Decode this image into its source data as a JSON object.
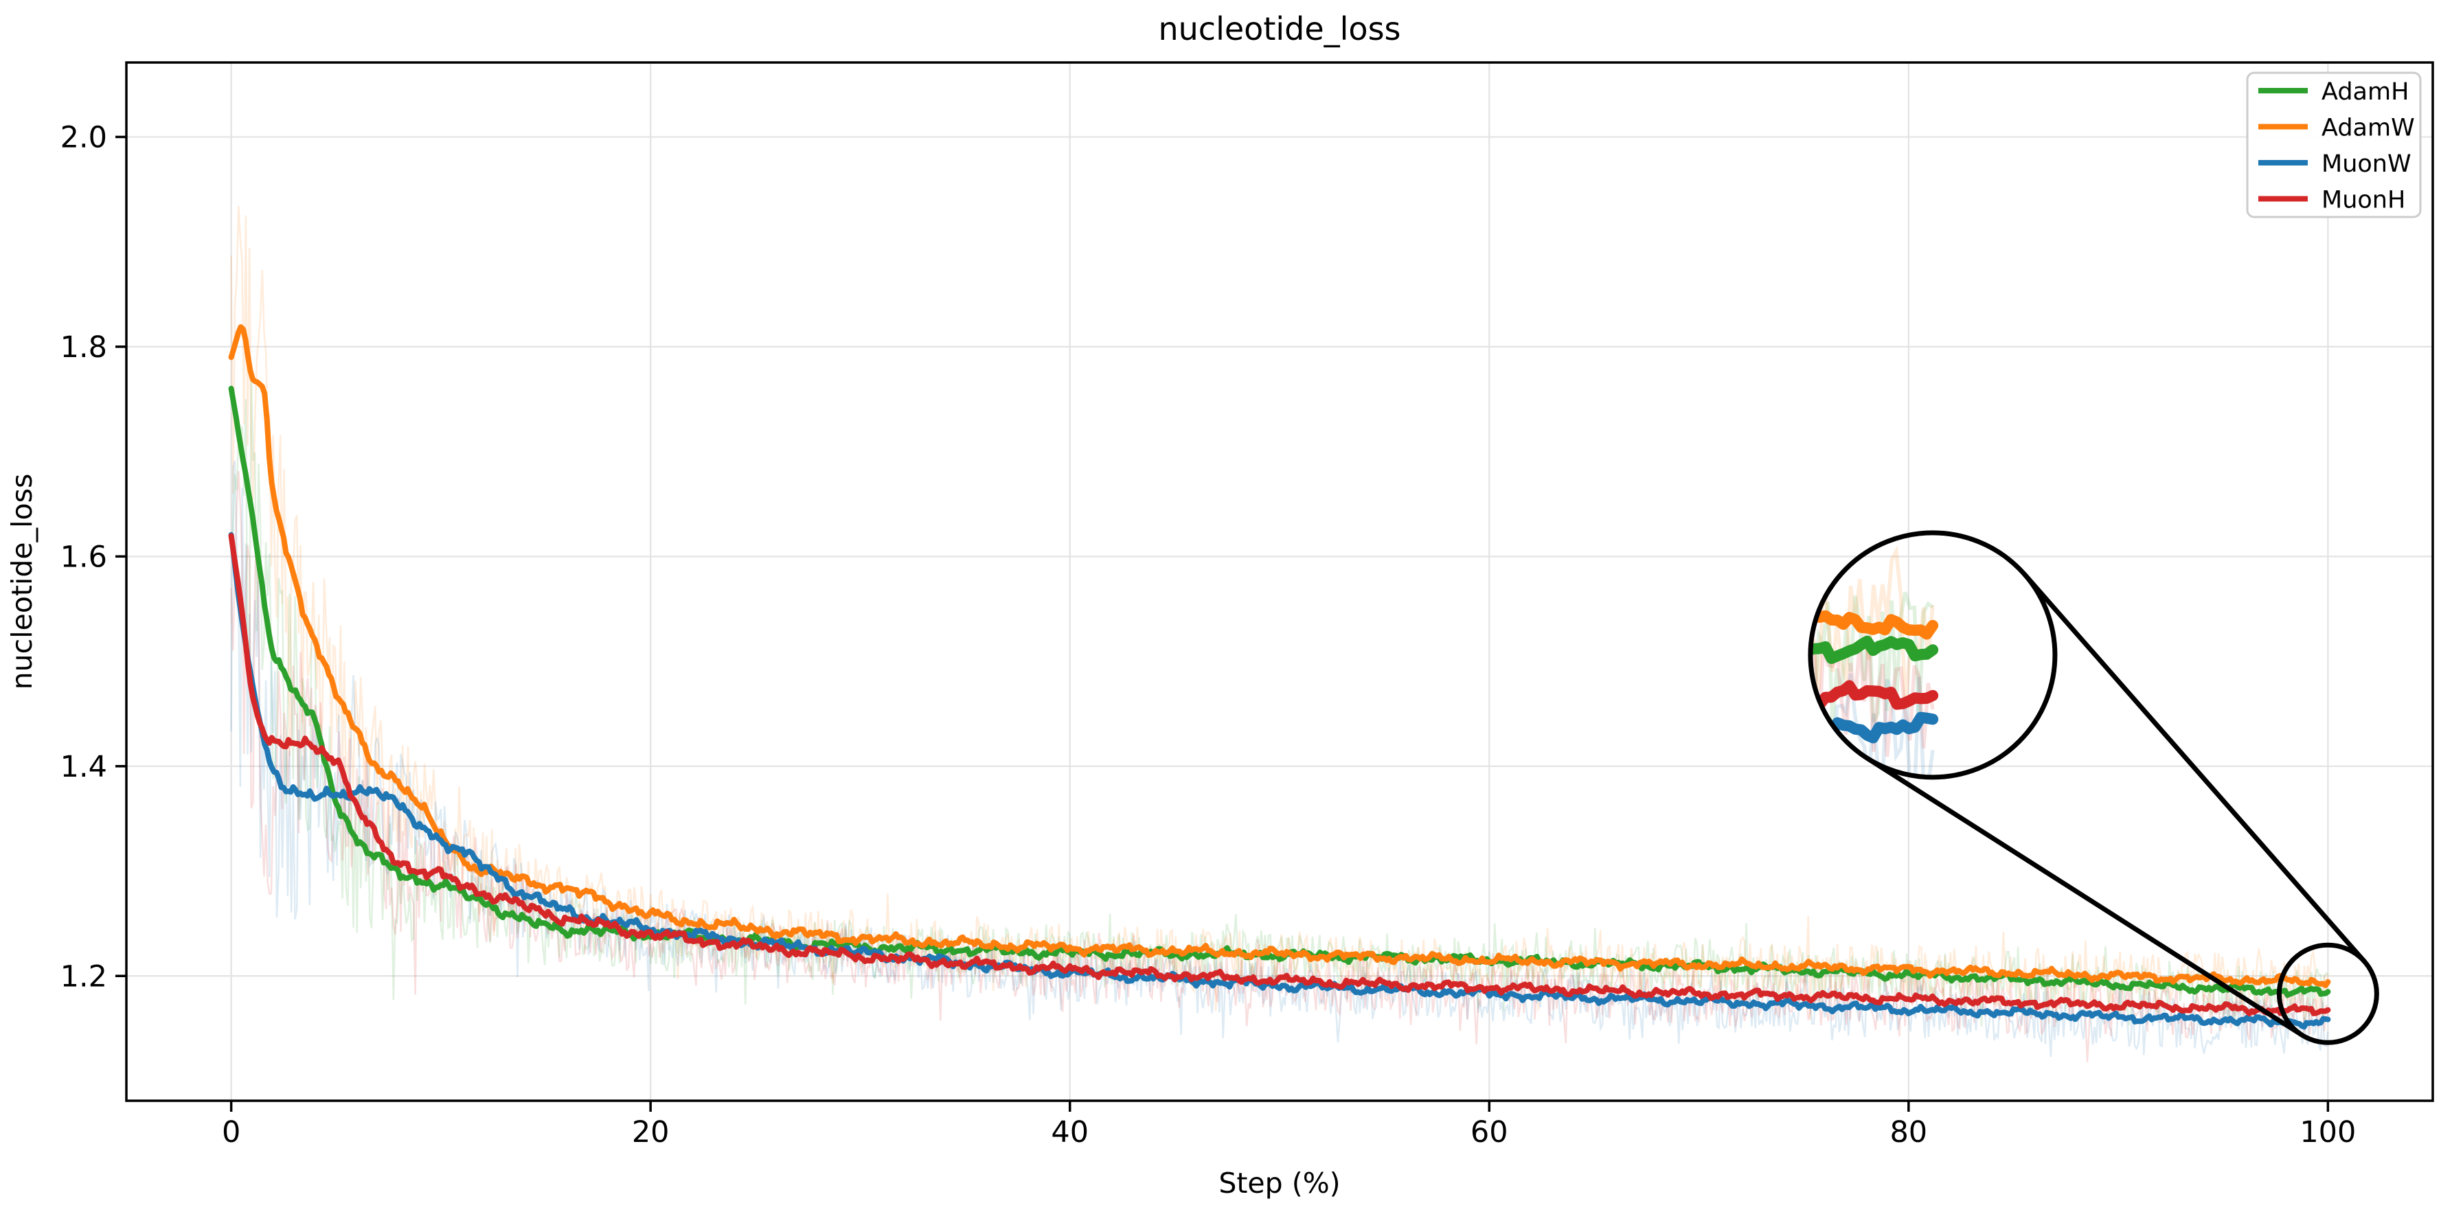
{
  "figure": {
    "title": "nucleotide_loss"
  },
  "chart_data": {
    "type": "line",
    "title": "nucleotide_loss",
    "xlabel": "Step (%)",
    "ylabel": "nucleotide_loss",
    "xlim": [
      -5,
      105
    ],
    "ylim": [
      1.081,
      2.071
    ],
    "xticks": [
      0,
      20,
      40,
      60,
      80,
      100
    ],
    "yticks": [
      1.2,
      1.4,
      1.6,
      1.8,
      2.0
    ],
    "grid": true,
    "grid_color": "#e3e3e3",
    "legend_position": "upper right",
    "raw_trace_alpha": 0.15,
    "x": [
      0,
      0.5,
      1,
      1.5,
      2,
      3,
      4,
      5,
      6,
      7,
      8,
      9,
      10,
      12,
      14,
      16,
      18,
      20,
      25,
      30,
      35,
      40,
      45,
      50,
      55,
      60,
      65,
      70,
      75,
      80,
      85,
      90,
      95,
      100
    ],
    "series": [
      {
        "name": "AdamH",
        "color": "#2ca02c",
        "values": [
          1.76,
          1.7,
          1.64,
          1.57,
          1.51,
          1.47,
          1.44,
          1.37,
          1.33,
          1.31,
          1.3,
          1.292,
          1.285,
          1.272,
          1.252,
          1.245,
          1.242,
          1.24,
          1.233,
          1.228,
          1.225,
          1.222,
          1.221,
          1.22,
          1.218,
          1.215,
          1.212,
          1.209,
          1.205,
          1.201,
          1.197,
          1.192,
          1.188,
          1.184
        ]
      },
      {
        "name": "AdamW",
        "color": "#ff7f0e",
        "values": [
          1.79,
          1.82,
          1.77,
          1.76,
          1.66,
          1.58,
          1.52,
          1.47,
          1.43,
          1.4,
          1.385,
          1.36,
          1.335,
          1.3,
          1.292,
          1.282,
          1.272,
          1.258,
          1.245,
          1.236,
          1.231,
          1.227,
          1.224,
          1.221,
          1.218,
          1.215,
          1.213,
          1.211,
          1.209,
          1.206,
          1.203,
          1.2,
          1.197,
          1.194
        ]
      },
      {
        "name": "MuonW",
        "color": "#1f77b4",
        "values": [
          1.62,
          1.54,
          1.48,
          1.43,
          1.4,
          1.375,
          1.37,
          1.372,
          1.378,
          1.375,
          1.36,
          1.345,
          1.33,
          1.305,
          1.278,
          1.262,
          1.252,
          1.245,
          1.232,
          1.222,
          1.212,
          1.203,
          1.197,
          1.191,
          1.187,
          1.183,
          1.179,
          1.176,
          1.172,
          1.168,
          1.165,
          1.161,
          1.158,
          1.155
        ]
      },
      {
        "name": "MuonH",
        "color": "#d62728",
        "values": [
          1.62,
          1.55,
          1.47,
          1.435,
          1.42,
          1.42,
          1.42,
          1.405,
          1.36,
          1.33,
          1.31,
          1.3,
          1.295,
          1.28,
          1.266,
          1.255,
          1.247,
          1.24,
          1.228,
          1.219,
          1.212,
          1.206,
          1.201,
          1.196,
          1.192,
          1.189,
          1.186,
          1.183,
          1.181,
          1.178,
          1.175,
          1.172,
          1.169,
          1.166
        ]
      }
    ],
    "legend": [
      "AdamH",
      "AdamW",
      "MuonW",
      "MuonH"
    ],
    "annotations": {
      "magnifier": {
        "target_center_step": 100.0,
        "target_center_loss": 1.183,
        "target_radius_px": 71,
        "lens_center_step": 81.15,
        "lens_center_loss": 1.506,
        "lens_radius_px": 178,
        "zoom": 2.5,
        "stroke_color": "#000000"
      }
    }
  }
}
